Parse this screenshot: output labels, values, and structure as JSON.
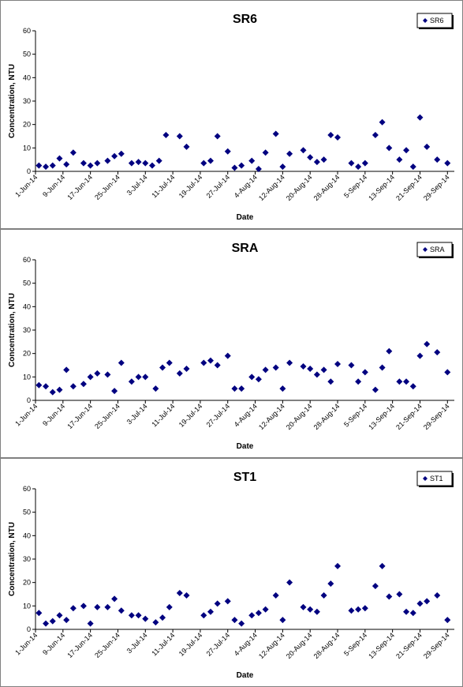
{
  "chart_data": [
    {
      "type": "scatter",
      "title": "SR6",
      "xlabel": "Date",
      "ylabel": "Concentration, NTU",
      "ylim": [
        0,
        60
      ],
      "yticks": [
        "0",
        "10",
        "20",
        "30",
        "40",
        "50",
        "60"
      ],
      "xlim": [
        "2014-06-01",
        "2014-10-01"
      ],
      "xticks": [
        "1-Jun-14",
        "9-Jun-14",
        "17-Jun-14",
        "25-Jun-14",
        "3-Jul-14",
        "11-Jul-14",
        "19-Jul-14",
        "27-Jul-14",
        "4-Aug-14",
        "12-Aug-14",
        "20-Aug-14",
        "28-Aug-14",
        "5-Sep-14",
        "13-Sep-14",
        "21-Sep-14",
        "29-Sep-14"
      ],
      "grid": false,
      "legend_position": "top-right",
      "marker_color": "#000080",
      "series": [
        {
          "name": "SR6",
          "x": [
            "2014-06-02",
            "2014-06-04",
            "2014-06-06",
            "2014-06-08",
            "2014-06-10",
            "2014-06-12",
            "2014-06-15",
            "2014-06-17",
            "2014-06-19",
            "2014-06-22",
            "2014-06-24",
            "2014-06-26",
            "2014-06-29",
            "2014-07-01",
            "2014-07-03",
            "2014-07-05",
            "2014-07-07",
            "2014-07-09",
            "2014-07-13",
            "2014-07-15",
            "2014-07-20",
            "2014-07-22",
            "2014-07-24",
            "2014-07-27",
            "2014-07-29",
            "2014-07-31",
            "2014-08-03",
            "2014-08-05",
            "2014-08-07",
            "2014-08-10",
            "2014-08-12",
            "2014-08-14",
            "2014-08-18",
            "2014-08-20",
            "2014-08-22",
            "2014-08-24",
            "2014-08-26",
            "2014-08-28",
            "2014-09-01",
            "2014-09-03",
            "2014-09-05",
            "2014-09-08",
            "2014-09-10",
            "2014-09-12",
            "2014-09-15",
            "2014-09-17",
            "2014-09-19",
            "2014-09-21",
            "2014-09-23",
            "2014-09-26",
            "2014-09-29"
          ],
          "y": [
            2.5,
            2,
            2.5,
            5.5,
            3,
            8,
            3.5,
            2.5,
            3.5,
            4.5,
            6.5,
            7.5,
            3.5,
            4,
            3.5,
            2.5,
            4.5,
            15.5,
            15,
            10.5,
            3.5,
            4.5,
            15,
            8.5,
            1.5,
            2.5,
            4.5,
            1,
            8,
            16,
            2,
            7.5,
            9,
            6,
            4,
            5,
            15.5,
            14.5,
            3.5,
            2,
            3.5,
            15.5,
            21,
            10,
            5,
            9,
            2,
            23,
            10.5,
            5,
            3.5
          ]
        }
      ]
    },
    {
      "type": "scatter",
      "title": "SRA",
      "xlabel": "Date",
      "ylabel": "Concentration, NTU",
      "ylim": [
        0,
        60
      ],
      "yticks": [
        "0",
        "10",
        "20",
        "30",
        "40",
        "50",
        "60"
      ],
      "xlim": [
        "2014-06-01",
        "2014-10-01"
      ],
      "xticks": [
        "1-Jun-14",
        "9-Jun-14",
        "17-Jun-14",
        "25-Jun-14",
        "3-Jul-14",
        "11-Jul-14",
        "19-Jul-14",
        "27-Jul-14",
        "4-Aug-14",
        "12-Aug-14",
        "20-Aug-14",
        "28-Aug-14",
        "5-Sep-14",
        "13-Sep-14",
        "21-Sep-14",
        "29-Sep-14"
      ],
      "grid": false,
      "legend_position": "top-right",
      "marker_color": "#000080",
      "series": [
        {
          "name": "SRA",
          "x": [
            "2014-06-02",
            "2014-06-04",
            "2014-06-06",
            "2014-06-08",
            "2014-06-10",
            "2014-06-12",
            "2014-06-15",
            "2014-06-17",
            "2014-06-19",
            "2014-06-22",
            "2014-06-24",
            "2014-06-26",
            "2014-06-29",
            "2014-07-01",
            "2014-07-03",
            "2014-07-06",
            "2014-07-08",
            "2014-07-10",
            "2014-07-13",
            "2014-07-15",
            "2014-07-20",
            "2014-07-22",
            "2014-07-24",
            "2014-07-27",
            "2014-07-29",
            "2014-07-31",
            "2014-08-03",
            "2014-08-05",
            "2014-08-07",
            "2014-08-10",
            "2014-08-12",
            "2014-08-14",
            "2014-08-18",
            "2014-08-20",
            "2014-08-22",
            "2014-08-24",
            "2014-08-26",
            "2014-08-28",
            "2014-09-01",
            "2014-09-03",
            "2014-09-05",
            "2014-09-08",
            "2014-09-10",
            "2014-09-12",
            "2014-09-15",
            "2014-09-17",
            "2014-09-19",
            "2014-09-21",
            "2014-09-23",
            "2014-09-26",
            "2014-09-29"
          ],
          "y": [
            6.5,
            6,
            3.5,
            4.5,
            13,
            6,
            7,
            10,
            11.5,
            11,
            4,
            16,
            8,
            10,
            10,
            5,
            14,
            16,
            11.5,
            13.5,
            16,
            17,
            15,
            19,
            5,
            5,
            10,
            9,
            13,
            14,
            5,
            16,
            14.5,
            13.5,
            11,
            13,
            8,
            15.5,
            15,
            8,
            12,
            4.5,
            14,
            21,
            8,
            8,
            6,
            19,
            24,
            20.5,
            12
          ]
        }
      ]
    },
    {
      "type": "scatter",
      "title": "ST1",
      "xlabel": "Date",
      "ylabel": "Concentration, NTU",
      "ylim": [
        0,
        60
      ],
      "yticks": [
        "0",
        "10",
        "20",
        "30",
        "40",
        "50",
        "60"
      ],
      "xlim": [
        "2014-06-01",
        "2014-10-01"
      ],
      "xticks": [
        "1-Jun-14",
        "9-Jun-14",
        "17-Jun-14",
        "25-Jun-14",
        "3-Jul-14",
        "11-Jul-14",
        "19-Jul-14",
        "27-Jul-14",
        "4-Aug-14",
        "12-Aug-14",
        "20-Aug-14",
        "28-Aug-14",
        "5-Sep-14",
        "13-Sep-14",
        "21-Sep-14",
        "29-Sep-14"
      ],
      "grid": false,
      "legend_position": "top-right",
      "marker_color": "#000080",
      "series": [
        {
          "name": "ST1",
          "x": [
            "2014-06-02",
            "2014-06-04",
            "2014-06-06",
            "2014-06-08",
            "2014-06-10",
            "2014-06-12",
            "2014-06-15",
            "2014-06-17",
            "2014-06-19",
            "2014-06-22",
            "2014-06-24",
            "2014-06-26",
            "2014-06-29",
            "2014-07-01",
            "2014-07-03",
            "2014-07-06",
            "2014-07-08",
            "2014-07-10",
            "2014-07-13",
            "2014-07-15",
            "2014-07-20",
            "2014-07-22",
            "2014-07-24",
            "2014-07-27",
            "2014-07-29",
            "2014-07-31",
            "2014-08-03",
            "2014-08-05",
            "2014-08-07",
            "2014-08-10",
            "2014-08-12",
            "2014-08-14",
            "2014-08-18",
            "2014-08-20",
            "2014-08-22",
            "2014-08-24",
            "2014-08-26",
            "2014-08-28",
            "2014-09-01",
            "2014-09-03",
            "2014-09-05",
            "2014-09-08",
            "2014-09-10",
            "2014-09-12",
            "2014-09-15",
            "2014-09-17",
            "2014-09-19",
            "2014-09-21",
            "2014-09-23",
            "2014-09-26",
            "2014-09-29"
          ],
          "y": [
            7,
            2.5,
            3.5,
            6,
            4,
            9,
            10,
            2.5,
            9.5,
            9.5,
            13,
            8,
            6,
            6,
            4.5,
            3,
            5,
            9.5,
            15.5,
            14.5,
            6,
            7.5,
            11,
            12,
            4,
            2.5,
            6,
            7,
            8.5,
            14.5,
            4,
            20,
            9.5,
            8.5,
            7.5,
            14.5,
            19.5,
            27,
            8,
            8.5,
            9,
            18.5,
            27,
            14,
            15,
            7.5,
            7,
            11,
            12,
            14.5,
            4
          ]
        }
      ]
    }
  ]
}
